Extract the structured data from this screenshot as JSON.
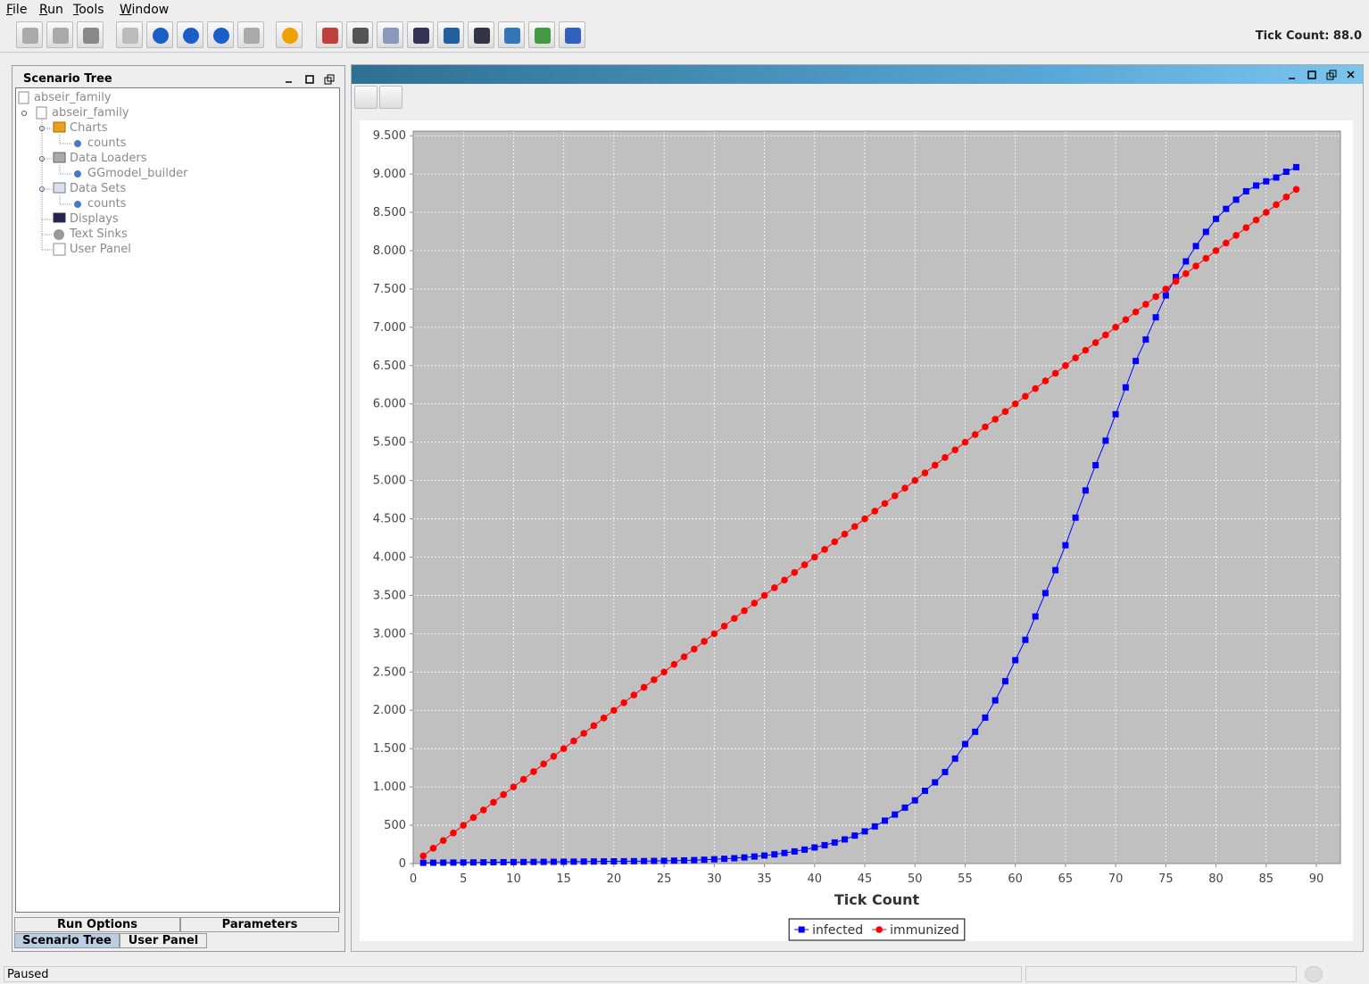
{
  "menu": [
    "File",
    "Run",
    "Tools",
    "Window"
  ],
  "status_right": "Tick Count: 88.0",
  "panel_title": "Scenario Tree",
  "tree": [
    "abseir_family",
    "abseir_family",
    "Charts",
    "counts",
    "Data Loaders",
    "GGmodel_builder",
    "Data Sets",
    "counts",
    "Displays",
    "Text Sinks",
    "User Panel"
  ],
  "tabs_top": [
    "Run Options",
    "Parameters"
  ],
  "tabs_bottom": [
    "Scenario Tree",
    "User Panel"
  ],
  "status": "Paused",
  "chart_data": {
    "type": "line",
    "x_label": "Tick Count",
    "x": [
      1,
      2,
      3,
      4,
      5,
      6,
      7,
      8,
      9,
      10,
      11,
      12,
      13,
      14,
      15,
      16,
      17,
      18,
      19,
      20,
      21,
      22,
      23,
      24,
      25,
      26,
      27,
      28,
      29,
      30,
      31,
      32,
      33,
      34,
      35,
      36,
      37,
      38,
      39,
      40,
      41,
      42,
      43,
      44,
      45,
      46,
      47,
      48,
      49,
      50,
      51,
      52,
      53,
      54,
      55,
      56,
      57,
      58,
      59,
      60,
      61,
      62,
      63,
      64,
      65,
      66,
      67,
      68,
      69,
      70,
      71,
      72,
      73,
      74,
      75,
      76,
      77,
      78,
      79,
      80,
      81,
      82,
      83,
      84,
      85,
      86,
      87,
      88
    ],
    "series": [
      {
        "name": "infected",
        "color": "#0000ff",
        "marker": "square",
        "values": [
          10,
          11,
          12,
          13,
          14,
          15,
          16,
          17,
          18,
          19,
          20,
          21,
          22,
          23,
          24,
          25,
          26,
          27,
          28,
          29,
          30,
          31,
          32,
          34,
          36,
          38,
          41,
          45,
          50,
          56,
          62,
          70,
          80,
          92,
          105,
          120,
          138,
          158,
          182,
          210,
          240,
          275,
          315,
          365,
          420,
          485,
          560,
          640,
          730,
          825,
          950,
          1060,
          1195,
          1370,
          1560,
          1720,
          1905,
          2130,
          2380,
          2655,
          2920,
          3225,
          3530,
          3830,
          4155,
          4515,
          4870,
          5200,
          5520,
          5865,
          6215,
          6560,
          6840,
          7130,
          7415,
          7655,
          7860,
          8060,
          8245,
          8415,
          8545,
          8665,
          8775,
          8850,
          8905,
          8955,
          9030,
          9090
        ]
      },
      {
        "name": "immunized",
        "color": "#ff0000",
        "marker": "circle",
        "values": [
          100,
          200,
          300,
          400,
          500,
          600,
          700,
          800,
          900,
          1000,
          1100,
          1200,
          1300,
          1400,
          1500,
          1600,
          1700,
          1800,
          1900,
          2000,
          2100,
          2200,
          2300,
          2400,
          2500,
          2600,
          2700,
          2800,
          2900,
          3000,
          3100,
          3200,
          3300,
          3400,
          3500,
          3600,
          3700,
          3800,
          3900,
          4000,
          4100,
          4200,
          4300,
          4400,
          4500,
          4600,
          4700,
          4800,
          4900,
          5000,
          5100,
          5200,
          5300,
          5400,
          5500,
          5600,
          5700,
          5800,
          5900,
          6000,
          6100,
          6200,
          6300,
          6400,
          6500,
          6600,
          6700,
          6800,
          6900,
          7000,
          7100,
          7200,
          7300,
          7400,
          7500,
          7600,
          7700,
          7800,
          7900,
          8000,
          8100,
          8200,
          8300,
          8400,
          8500,
          8600,
          8700,
          8800
        ]
      }
    ],
    "xlim": [
      0,
      92.4
    ],
    "xticks": [
      0,
      5,
      10,
      15,
      20,
      25,
      30,
      35,
      40,
      45,
      50,
      55,
      60,
      65,
      70,
      75,
      80,
      85,
      90
    ],
    "ylim": [
      0,
      9560
    ],
    "yticks": [
      0,
      500,
      {
        "value": 1000,
        "label": "1.000"
      },
      {
        "value": 1500,
        "label": "1.500"
      },
      {
        "value": 2000,
        "label": "2.000"
      },
      {
        "value": 2500,
        "label": "2.500"
      },
      {
        "value": 3000,
        "label": "3.000"
      },
      {
        "value": 3500,
        "label": "3.500"
      },
      {
        "value": 4000,
        "label": "4.000"
      },
      {
        "value": 4500,
        "label": "4.500"
      },
      {
        "value": 5000,
        "label": "5.000"
      },
      {
        "value": 5500,
        "label": "5.500"
      },
      {
        "value": 6000,
        "label": "6.000"
      },
      {
        "value": 6500,
        "label": "6.500"
      },
      {
        "value": 7000,
        "label": "7.000"
      },
      {
        "value": 7500,
        "label": "7.500"
      },
      {
        "value": 8000,
        "label": "8.000"
      },
      {
        "value": 8500,
        "label": "8.500"
      },
      {
        "value": 9000,
        "label": "9.000"
      },
      {
        "value": 9500,
        "label": "9.500"
      }
    ],
    "grid": true,
    "legend": "bottom"
  }
}
